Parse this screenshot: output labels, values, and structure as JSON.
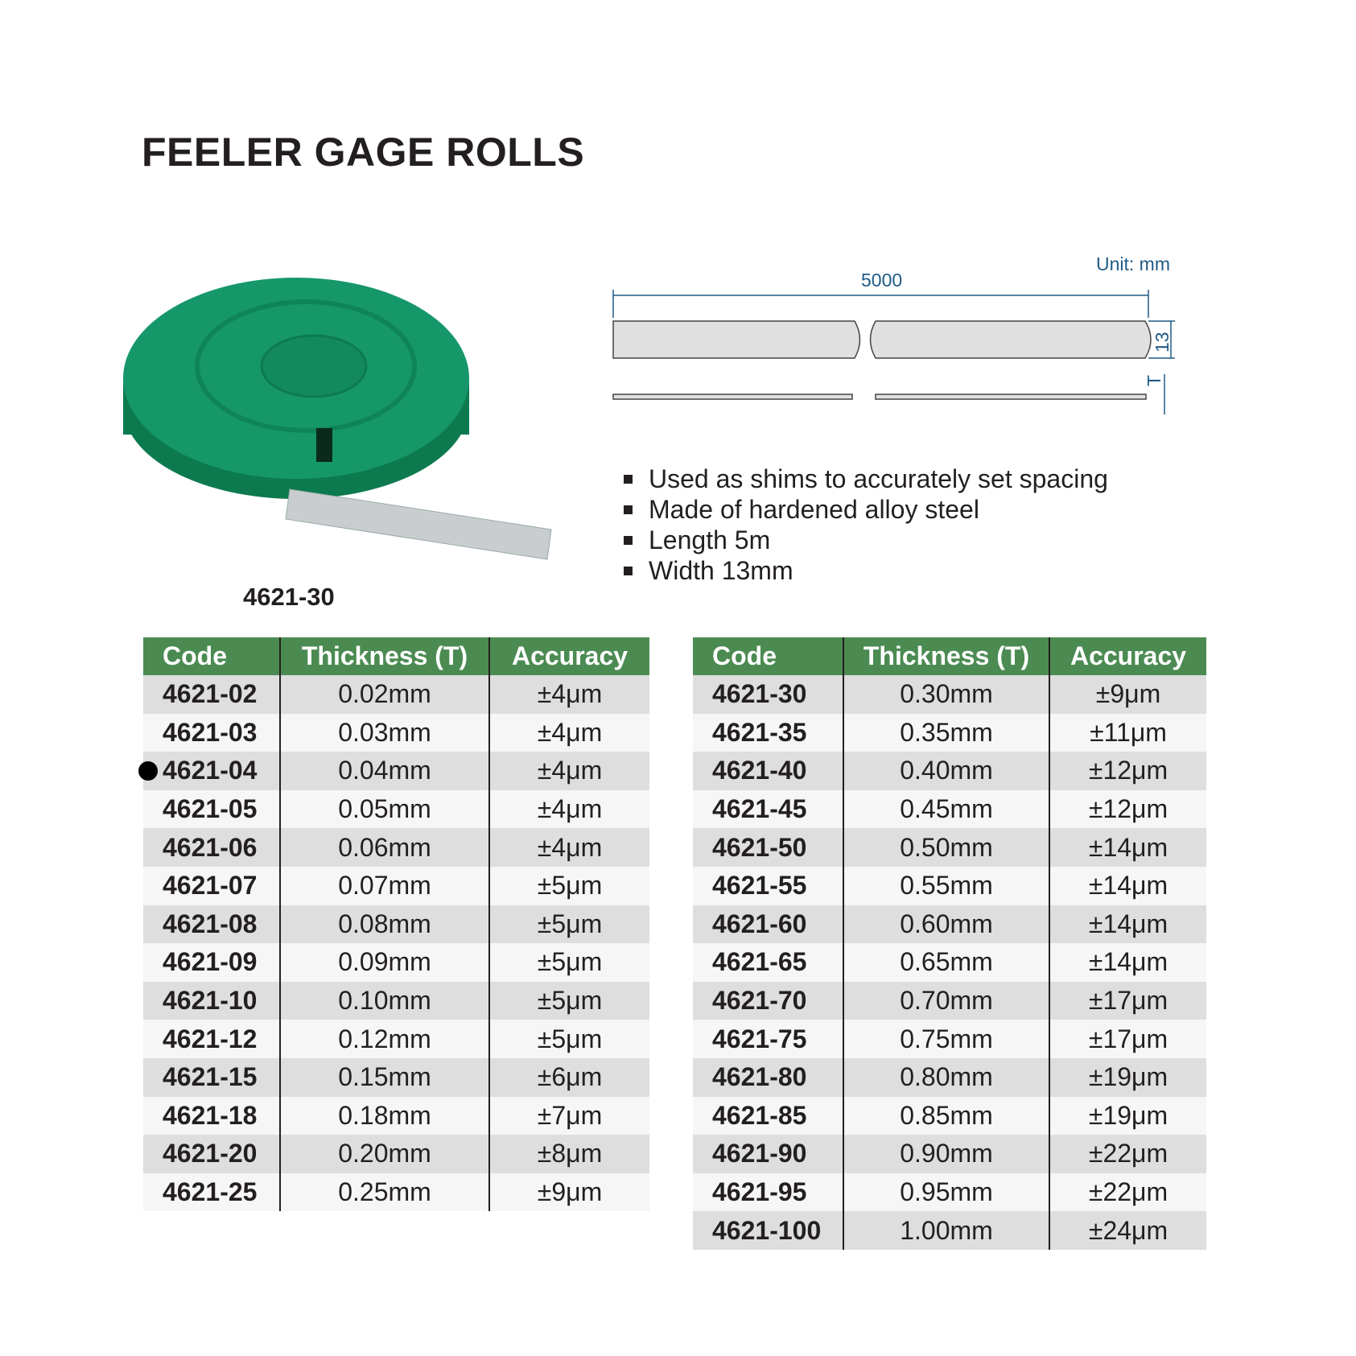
{
  "title": "FEELER GAGE ROLLS",
  "product_caption": "4621-30",
  "diagram": {
    "unit": "Unit: mm",
    "length": "5000",
    "width": "13",
    "thickness": "T"
  },
  "features": [
    "Used as shims to accurately set spacing",
    "Made of hardened alloy steel",
    "Length 5m",
    "Width 13mm"
  ],
  "table_headers": [
    "Code",
    "Thickness (T)",
    "Accuracy"
  ],
  "colors": {
    "header_green": "#4b8b52",
    "roll_green": "#12905e"
  },
  "table_left": [
    [
      "4621-02",
      "0.02mm",
      "±4μm"
    ],
    [
      "4621-03",
      "0.03mm",
      "±4μm"
    ],
    [
      "4621-04",
      "0.04mm",
      "±4μm"
    ],
    [
      "4621-05",
      "0.05mm",
      "±4μm"
    ],
    [
      "4621-06",
      "0.06mm",
      "±4μm"
    ],
    [
      "4621-07",
      "0.07mm",
      "±5μm"
    ],
    [
      "4621-08",
      "0.08mm",
      "±5μm"
    ],
    [
      "4621-09",
      "0.09mm",
      "±5μm"
    ],
    [
      "4621-10",
      "0.10mm",
      "±5μm"
    ],
    [
      "4621-12",
      "0.12mm",
      "±5μm"
    ],
    [
      "4621-15",
      "0.15mm",
      "±6μm"
    ],
    [
      "4621-18",
      "0.18mm",
      "±7μm"
    ],
    [
      "4621-20",
      "0.20mm",
      "±8μm"
    ],
    [
      "4621-25",
      "0.25mm",
      "±9μm"
    ]
  ],
  "table_right": [
    [
      "4621-30",
      "0.30mm",
      "±9μm"
    ],
    [
      "4621-35",
      "0.35mm",
      "±11μm"
    ],
    [
      "4621-40",
      "0.40mm",
      "±12μm"
    ],
    [
      "4621-45",
      "0.45mm",
      "±12μm"
    ],
    [
      "4621-50",
      "0.50mm",
      "±14μm"
    ],
    [
      "4621-55",
      "0.55mm",
      "±14μm"
    ],
    [
      "4621-60",
      "0.60mm",
      "±14μm"
    ],
    [
      "4621-65",
      "0.65mm",
      "±14μm"
    ],
    [
      "4621-70",
      "0.70mm",
      "±17μm"
    ],
    [
      "4621-75",
      "0.75mm",
      "±17μm"
    ],
    [
      "4621-80",
      "0.80mm",
      "±19μm"
    ],
    [
      "4621-85",
      "0.85mm",
      "±19μm"
    ],
    [
      "4621-90",
      "0.90mm",
      "±22μm"
    ],
    [
      "4621-95",
      "0.95mm",
      "±22μm"
    ],
    [
      "4621-100",
      "1.00mm",
      "±24μm"
    ]
  ]
}
